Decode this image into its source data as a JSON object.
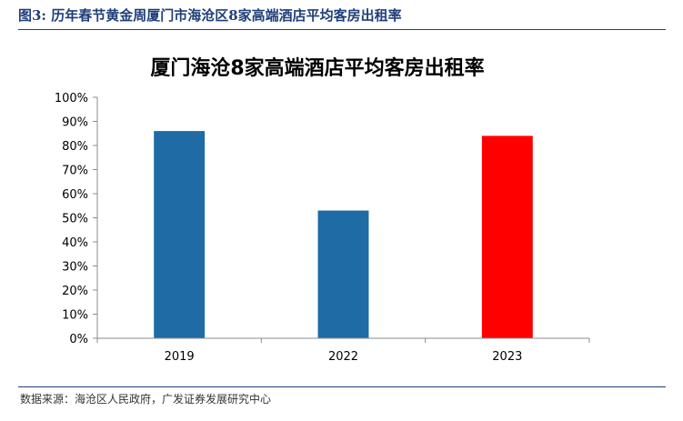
{
  "figure": {
    "caption": "图3:  历年春节黄金周厦门市海沧区8家高端酒店平均客房出租率",
    "source": "数据来源：海沧区人民政府，广发证券发展研究中心"
  },
  "colors": {
    "caption_text": "#1f3f7a",
    "rule": "#1f3f7a",
    "bar_blue": "#1f6ba5",
    "bar_red": "#ff0000",
    "axis": "#8c8c8c"
  },
  "chart_data": {
    "type": "bar",
    "title": "厦门海沧8家高端酒店平均客房出租率",
    "categories": [
      "2019",
      "2022",
      "2023"
    ],
    "values": [
      0.86,
      0.53,
      0.84
    ],
    "bar_colors": [
      "#1f6ba5",
      "#1f6ba5",
      "#ff0000"
    ],
    "yticks": [
      "0%",
      "10%",
      "20%",
      "30%",
      "40%",
      "50%",
      "60%",
      "70%",
      "80%",
      "90%",
      "100%"
    ],
    "ylim": [
      0,
      1
    ],
    "xlabel": "",
    "ylabel": "",
    "grid": false,
    "legend": "none"
  }
}
